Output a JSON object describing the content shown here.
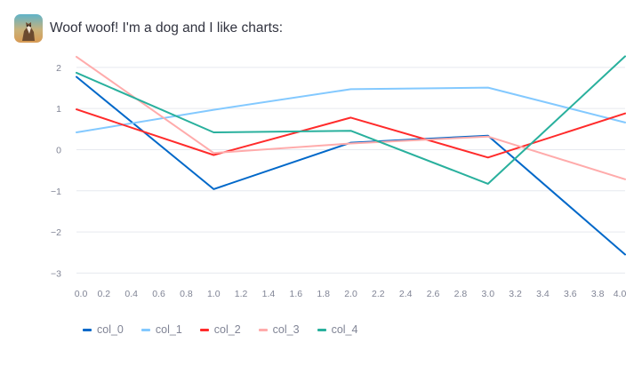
{
  "message": {
    "avatar_icon": "dog-avatar-icon",
    "text": "Woof woof! I'm a dog and I like charts:"
  },
  "chart_data": {
    "type": "line",
    "x": [
      0,
      1,
      2,
      3,
      4
    ],
    "series": [
      {
        "name": "col_0",
        "color": "#0068c9",
        "values": [
          1.77,
          -0.96,
          0.17,
          0.34,
          -2.55
        ]
      },
      {
        "name": "col_1",
        "color": "#83c9ff",
        "values": [
          0.42,
          0.97,
          1.47,
          1.51,
          0.66
        ]
      },
      {
        "name": "col_2",
        "color": "#ff2b2b",
        "values": [
          0.98,
          -0.13,
          0.78,
          -0.19,
          0.88
        ]
      },
      {
        "name": "col_3",
        "color": "#ffabab",
        "values": [
          2.26,
          -0.08,
          0.15,
          0.32,
          -0.72
        ]
      },
      {
        "name": "col_4",
        "color": "#29b09d",
        "values": [
          1.87,
          0.42,
          0.46,
          -0.83,
          2.27
        ]
      }
    ],
    "xlim": [
      0,
      4
    ],
    "ylim": [
      -3.1,
      2.3
    ],
    "x_ticks": [
      "0.0",
      "0.2",
      "0.4",
      "0.6",
      "0.8",
      "1.0",
      "1.2",
      "1.4",
      "1.6",
      "1.8",
      "2.0",
      "2.2",
      "2.4",
      "2.6",
      "2.8",
      "3.0",
      "3.2",
      "3.4",
      "3.6",
      "3.8",
      "4.0"
    ],
    "y_ticks": [
      "2",
      "1",
      "0",
      "−1",
      "−2",
      "−3"
    ],
    "y_tick_values": [
      2,
      1,
      0,
      -1,
      -2,
      -3
    ],
    "grid": "horizontal",
    "legend_position": "bottom-left",
    "title": "",
    "xlabel": "",
    "ylabel": ""
  }
}
